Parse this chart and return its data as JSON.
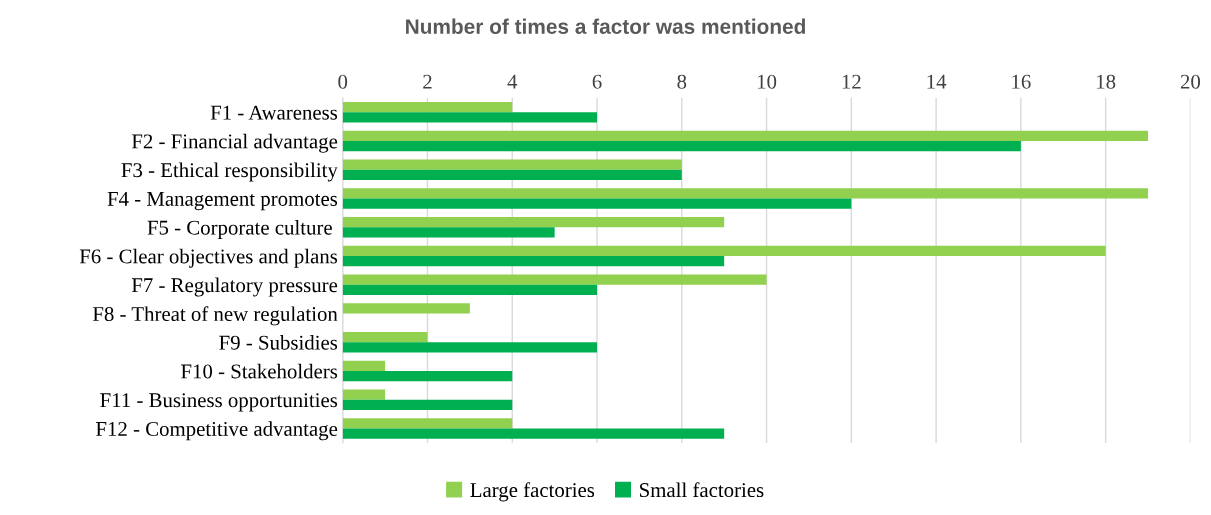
{
  "chart_data": {
    "type": "bar",
    "orientation": "horizontal",
    "title": "Number of times a factor was mentioned",
    "categories": [
      "F1 - Awareness",
      "F2 - Financial advantage",
      "F3 - Ethical responsibility",
      "F4 - Management promotes",
      "F5 - Corporate culture ",
      "F6 - Clear objectives and plans",
      "F7 - Regulatory pressure",
      "F8 - Threat of new regulation",
      "F9 - Subsidies",
      "F10 - Stakeholders",
      "F11 - Business opportunities",
      "F12 - Competitive advantage"
    ],
    "series": [
      {
        "name": "Large factories",
        "color": "#92d050",
        "values": [
          4,
          19,
          8,
          19,
          9,
          18,
          10,
          3,
          2,
          1,
          1,
          4
        ]
      },
      {
        "name": "Small factories",
        "color": "#00b050",
        "values": [
          6,
          16,
          8,
          12,
          5,
          9,
          6,
          0,
          6,
          4,
          4,
          9
        ]
      }
    ],
    "xlim": [
      0,
      20
    ],
    "xticks": [
      0,
      2,
      4,
      6,
      8,
      10,
      12,
      14,
      16,
      18,
      20
    ],
    "grid": "x",
    "legend": "bottom"
  }
}
